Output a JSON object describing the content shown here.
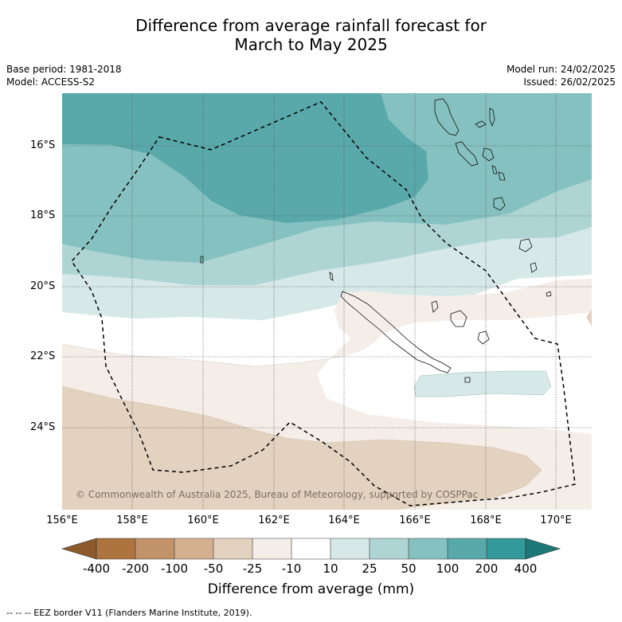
{
  "title_line1": "Difference from average rainfall forecast for",
  "title_line2": "March to May 2025",
  "base_period": "Base period: 1981-2018",
  "model": "Model: ACCESS-S2",
  "model_run": "Model run: 24/02/2025",
  "issued": "Issued: 26/02/2025",
  "lat_labels": [
    "16°S",
    "18°S",
    "20°S",
    "22°S",
    "24°S"
  ],
  "lon_labels": [
    "156°E",
    "158°E",
    "160°E",
    "162°E",
    "164°E",
    "166°E",
    "168°E",
    "170°E"
  ],
  "copyright": "© Commonwealth of Australia 2025, Bureau of Meteorology, supported by COSPPac",
  "colorbar": {
    "ticks": [
      "-400",
      "-200",
      "-100",
      "-50",
      "-25",
      "-10",
      "10",
      "25",
      "50",
      "100",
      "200",
      "400"
    ],
    "colors": [
      "#8c5a2b",
      "#ad7440",
      "#c2936a",
      "#d4b090",
      "#e4d2c1",
      "#f5eee8",
      "#ffffff",
      "#d6e9e8",
      "#aed5d4",
      "#85c1c0",
      "#5aa9aa",
      "#33999a",
      "#1f7878"
    ],
    "label": "Difference from average (mm)"
  },
  "footnote": "--  --  -- EEZ border V11 (Flanders Marine Institute, 2019)."
}
